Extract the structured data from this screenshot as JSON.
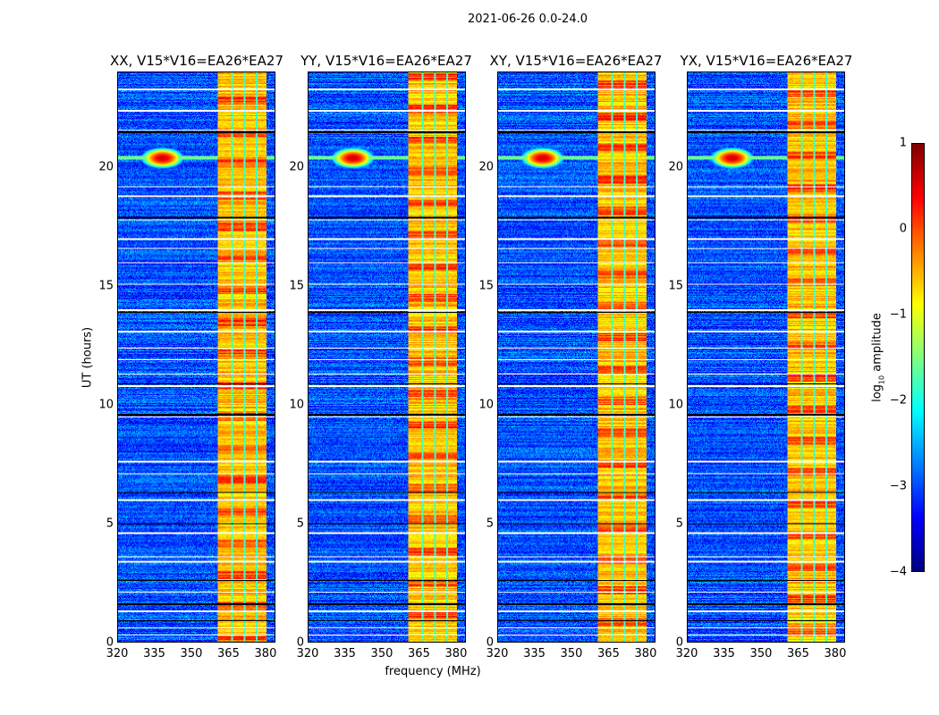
{
  "chart_data": {
    "type": "heatmap",
    "title": "2021-06-26 0.0-24.0",
    "xlabel": "frequency (MHz)",
    "ylabel": "UT (hours)",
    "xlim": [
      320,
      384
    ],
    "ylim": [
      0,
      24
    ],
    "xticks": [
      "320",
      "335",
      "350",
      "365",
      "380"
    ],
    "yticks": [
      "0",
      "5",
      "10",
      "15",
      "20"
    ],
    "panels": [
      {
        "title": "XX, V15*V16=EA26*EA27"
      },
      {
        "title": "YY, V15*V16=EA26*EA27"
      },
      {
        "title": "XY, V15*V16=EA26*EA27"
      },
      {
        "title": "YX, V15*V16=EA26*EA27"
      }
    ],
    "colorbar": {
      "label_main": "log",
      "label_sub": "10",
      "label_rest": " amplitude",
      "range": [
        -4,
        1
      ],
      "ticks": [
        "1",
        "0",
        "−1",
        "−2",
        "−3",
        "−4"
      ],
      "colormap": "jet"
    },
    "features": {
      "background_log_amp": -3,
      "band_mhz": [
        360.5,
        380.5
      ],
      "band_log_amp": -0.6,
      "band_gaps_mhz": [
        366.5,
        371.5,
        376.5
      ],
      "rfi_point": {
        "freq_mhz": 338,
        "ut_hours": 20.4,
        "log_amp": 0.6
      },
      "flagged_hours": [
        0.3,
        0.6,
        1.3,
        2.1,
        3.4,
        3.6,
        4.6,
        6.0,
        7.1,
        7.6,
        9.5,
        10.8,
        11.3,
        11.9,
        12.4,
        13.1,
        14.0,
        15.1,
        16.0,
        16.6,
        17.0,
        17.8,
        18.8,
        19.2,
        21.6,
        22.4,
        23.3
      ],
      "dark_hours": [
        0.9,
        1.6,
        2.6,
        5.0,
        6.3,
        9.6,
        10.9,
        13.9,
        17.9,
        21.5
      ]
    }
  }
}
